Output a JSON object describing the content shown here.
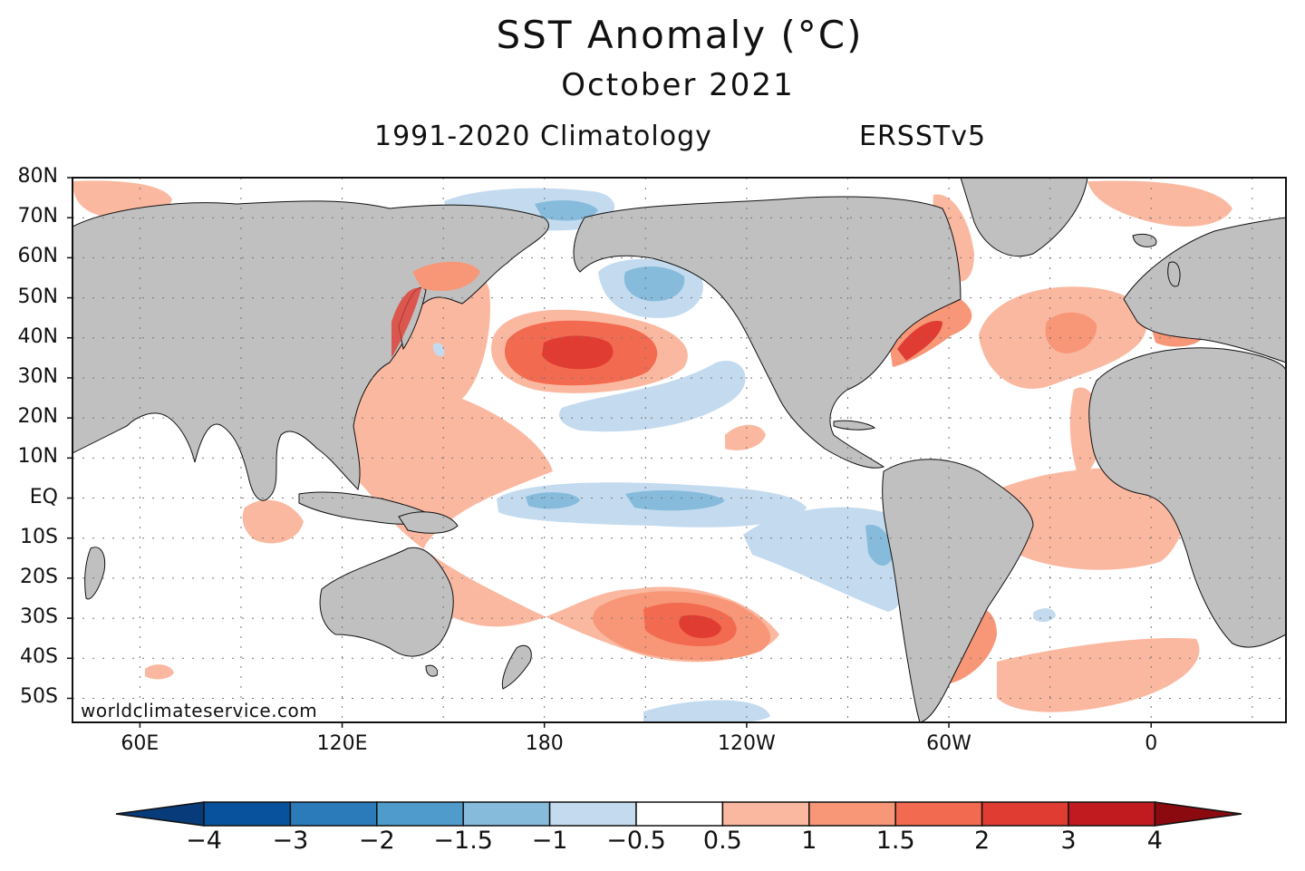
{
  "title": "SST Anomaly (°C)",
  "subtitle": "October 2021",
  "climatology": "1991-2020 Climatology",
  "dataset": "ERSSTv5",
  "credit": "worldclimateservice.com",
  "colors": {
    "land": "#c0c0c0",
    "neg4": "#08519c",
    "neg3": "#2b7bba",
    "neg2": "#4f9bcb",
    "neg15": "#86bbdc",
    "neg1": "#c4dbef",
    "neutral": "#ffffff",
    "pos05": "#fbb8a0",
    "pos1": "#f79778",
    "pos15": "#f26a50",
    "pos2": "#e03c32",
    "pos3": "#c21b1f",
    "pos4": "#8b0a0f"
  },
  "axes": {
    "lat_labels": [
      "80N",
      "70N",
      "60N",
      "50N",
      "40N",
      "30N",
      "20N",
      "10N",
      "EQ",
      "10S",
      "20S",
      "30S",
      "40S",
      "50S"
    ],
    "lon_labels": [
      "60E",
      "120E",
      "180",
      "120W",
      "60W",
      "0"
    ]
  },
  "colorbar": {
    "labels": [
      "-4",
      "-3",
      "-2",
      "-1.5",
      "-1",
      "-0.5",
      "0.5",
      "1",
      "1.5",
      "2",
      "3",
      "4"
    ]
  }
}
